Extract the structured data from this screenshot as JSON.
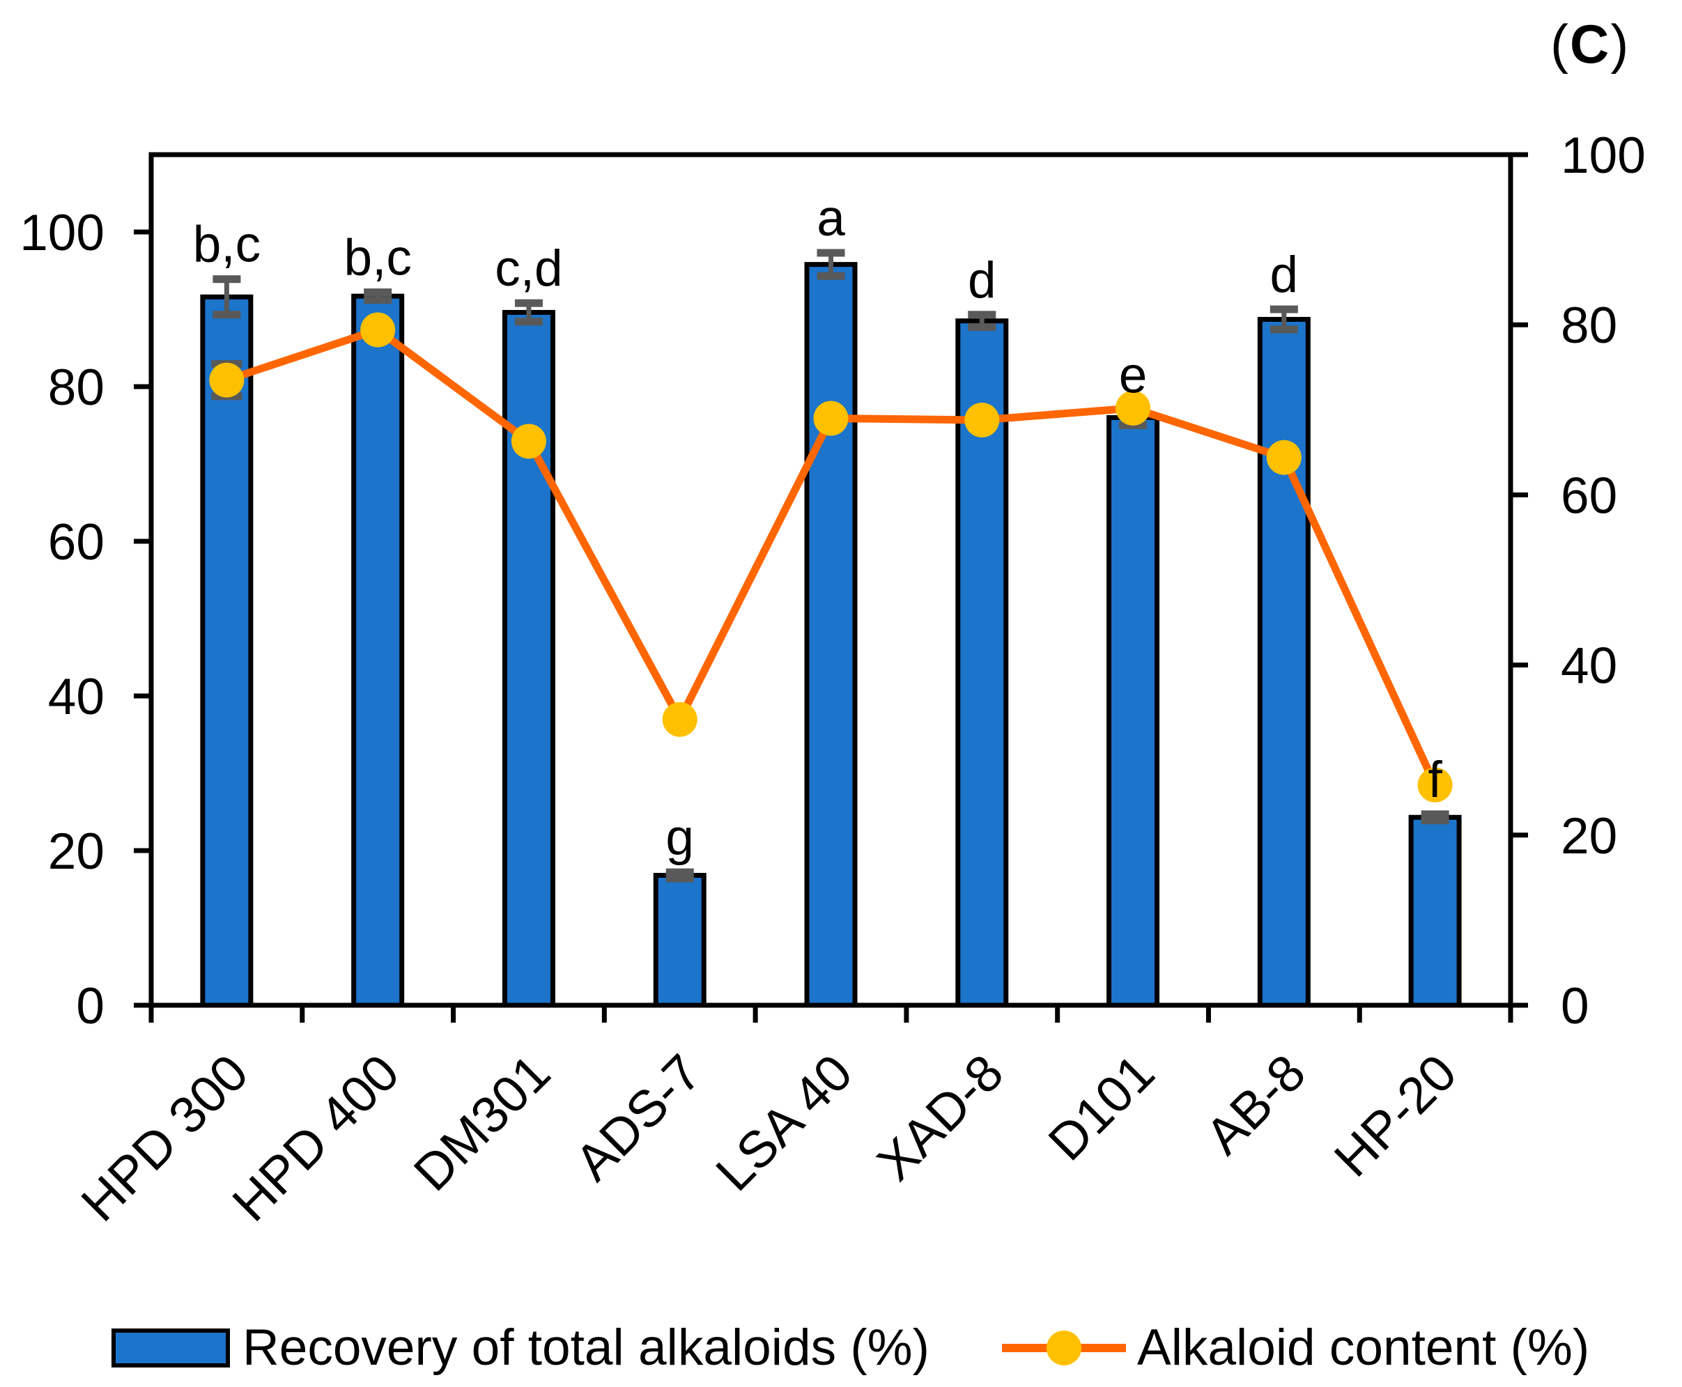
{
  "panel_label": {
    "open": "(",
    "letter": "C",
    "close": ")"
  },
  "colors": {
    "bar_fill": "#1C74CB",
    "bar_border": "#000000",
    "line": "#FF6600",
    "marker": "#FFC000",
    "error_bar": "#595959",
    "axis": "#000000",
    "background": "#FFFFFF"
  },
  "chart_data": {
    "type": "bar",
    "subtype": "combo-bar-line-dual-axis",
    "categories": [
      "HPD 300",
      "HPD 400",
      "DM301",
      "ADS-7",
      "LSA 40",
      "XAD-8",
      "D101",
      "AB-8",
      "HP-20"
    ],
    "series": [
      {
        "name": "Recovery of total alkaloids (%)",
        "type": "bar",
        "axis": "left",
        "values": [
          91.6,
          91.7,
          89.6,
          16.8,
          95.8,
          88.5,
          76.0,
          88.7,
          24.3
        ],
        "errors": [
          2.3,
          0.5,
          1.2,
          0.4,
          1.5,
          0.8,
          1.0,
          1.3,
          0.4
        ],
        "letters": [
          "b,c",
          "b,c",
          "c,d",
          "g",
          "a",
          "d",
          "e",
          "d",
          "f"
        ]
      },
      {
        "name": "Alkaloid content (%)",
        "type": "line",
        "axis": "right",
        "values": [
          73.5,
          79.4,
          66.3,
          33.6,
          69.0,
          68.8,
          70.2,
          64.4,
          25.9
        ],
        "marker_errors": [
          1.9,
          0,
          0,
          0,
          0,
          0,
          0,
          0,
          0
        ]
      }
    ],
    "left_axis": {
      "ticks": [
        0,
        20,
        40,
        60,
        80,
        100
      ],
      "min": 0,
      "max": 110
    },
    "right_axis": {
      "ticks": [
        0,
        20,
        40,
        60,
        80,
        100
      ],
      "min": 0,
      "max": 100
    },
    "grid": false,
    "legend_position": "bottom"
  }
}
